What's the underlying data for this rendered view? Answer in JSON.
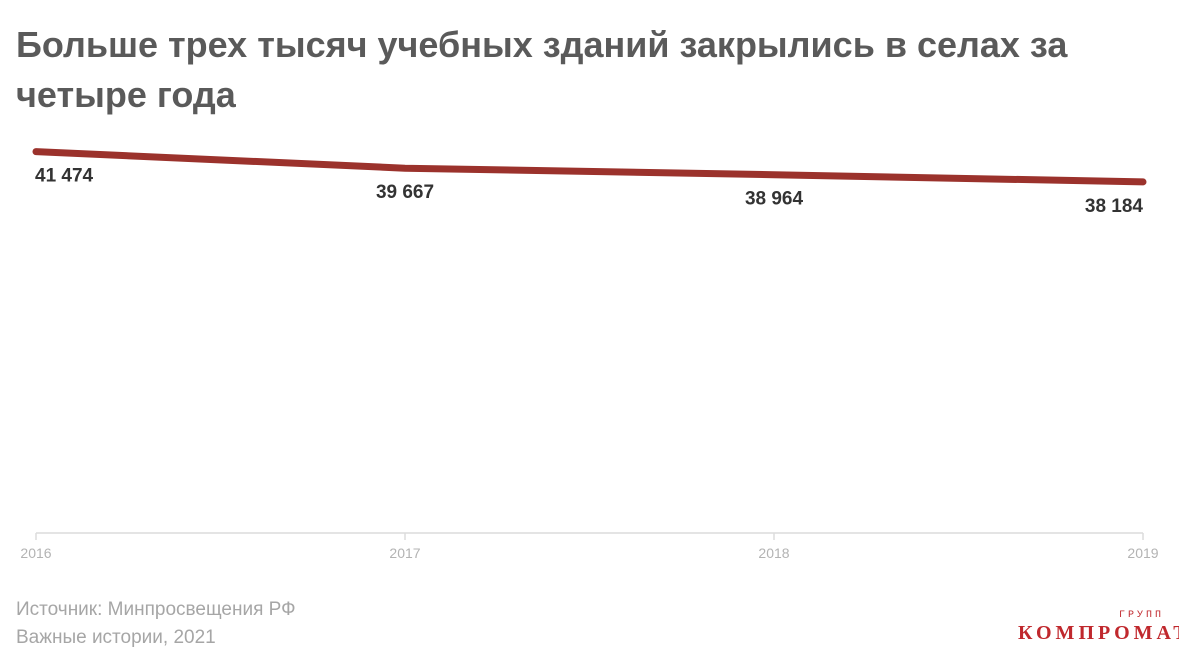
{
  "title": "Больше трех тысяч учебных зданий закрылись в селах за четыре года",
  "source": "Источник: Минпросвещения РФ",
  "credit": "Важные истории, 2021",
  "logo": {
    "top": "ГРУПП",
    "main": "КОМПРОМАТ"
  },
  "colors": {
    "line": "#9b322c",
    "title": "#5a5a5a",
    "label": "#333333",
    "axis": "#b3b3b3",
    "muted": "#a6a6a6",
    "logo": "#c0282d"
  },
  "chart_data": {
    "type": "line",
    "title": "Больше трех тысяч учебных зданий закрылись в селах за четыре года",
    "xlabel": "",
    "ylabel": "",
    "x": [
      "2016",
      "2017",
      "2018",
      "2019"
    ],
    "values": [
      41474,
      39667,
      38964,
      38184
    ],
    "value_labels": [
      "41 474",
      "39 667",
      "38 964",
      "38 184"
    ],
    "ylim": [
      0,
      46000
    ],
    "grid": false,
    "legend": "none"
  }
}
